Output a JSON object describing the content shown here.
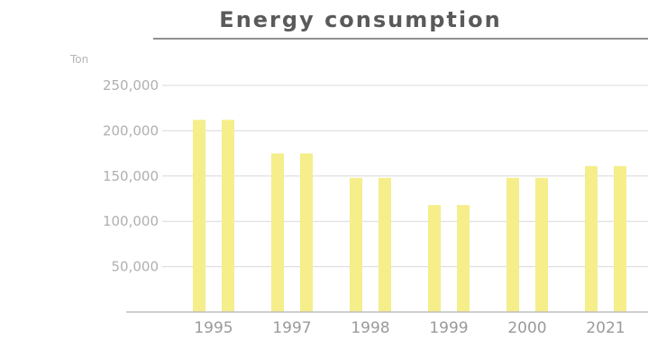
{
  "chart_data": {
    "type": "bar",
    "title": "Energy consumption",
    "ylabel": "Ton",
    "xlabel": "",
    "categories": [
      "1995",
      "1997",
      "1998",
      "1999",
      "2000",
      "2021"
    ],
    "series": [
      {
        "values": [
          212000,
          175000,
          148000,
          118000,
          148000,
          161000
        ]
      },
      {
        "values": [
          212000,
          175000,
          148000,
          118000,
          148000,
          161000
        ]
      }
    ],
    "ylim": [
      0,
      250000
    ],
    "yticks": [
      50000,
      100000,
      150000,
      200000,
      250000
    ],
    "ytick_labels": [
      "50,000",
      "100,000",
      "150,000",
      "200,000",
      "250,000"
    ],
    "grid": true,
    "colors": {
      "bar": "#f5ee8a",
      "grid": "#d9d9d9",
      "axis": "#bdbdbd",
      "title_rule": "#6a6a6a"
    }
  }
}
